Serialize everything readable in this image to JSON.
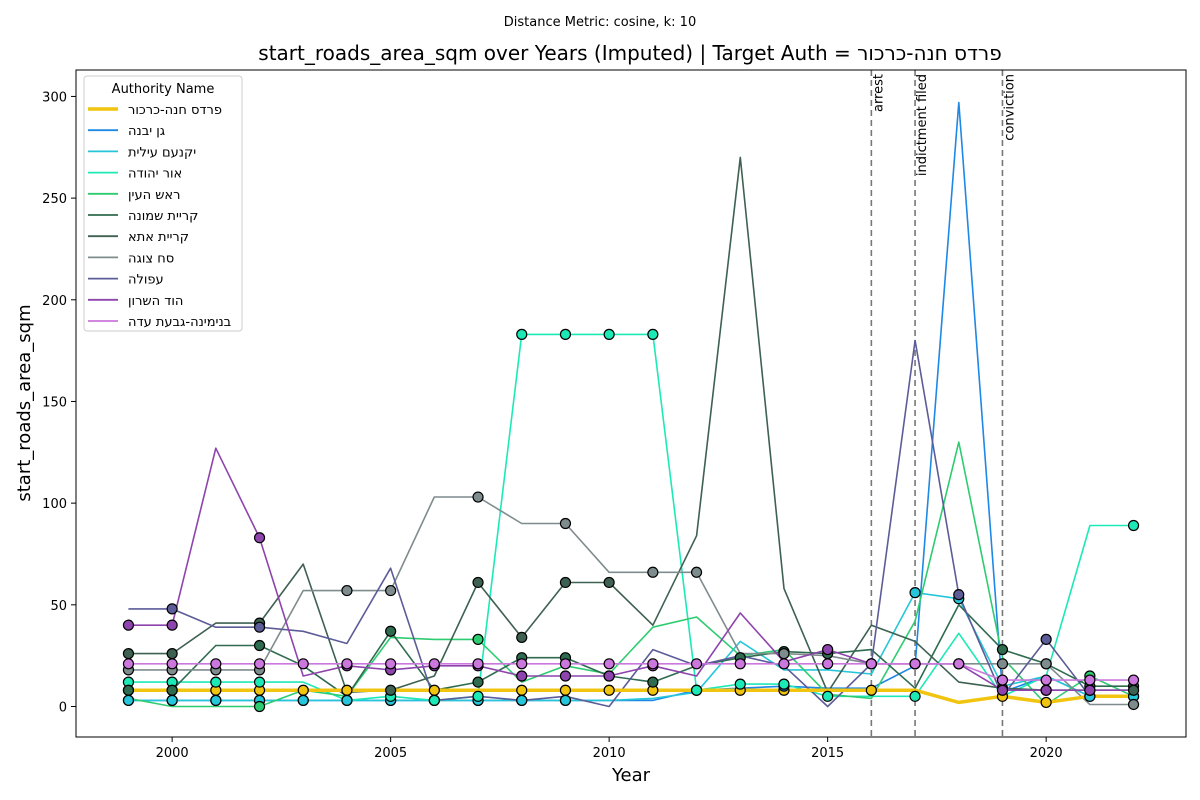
{
  "chart_data": {
    "type": "line",
    "suptitle": "Distance Metric: cosine, k: 10",
    "title": "start_roads_area_sqm over Years (Imputed) | Target Auth = פרדס חנה-כרכור",
    "xlabel": "Year",
    "ylabel": "start_roads_area_sqm",
    "xlim": [
      1997.8,
      2023.2
    ],
    "ylim": [
      -15,
      313
    ],
    "xticks": [
      2000,
      2005,
      2010,
      2015,
      2020
    ],
    "yticks": [
      0,
      50,
      100,
      150,
      200,
      250,
      300
    ],
    "grid": false,
    "legend": {
      "title": "Authority Name",
      "placement": "upper-left"
    },
    "x": [
      1999,
      2000,
      2001,
      2002,
      2003,
      2004,
      2005,
      2006,
      2007,
      2008,
      2009,
      2010,
      2011,
      2012,
      2013,
      2014,
      2015,
      2016,
      2017,
      2018,
      2019,
      2020,
      2021,
      2022
    ],
    "events": [
      {
        "x": 2016,
        "label": "arrest"
      },
      {
        "x": 2017,
        "label": "indictment filed"
      },
      {
        "x": 2019,
        "label": "conviction"
      }
    ],
    "series": [
      {
        "name": "פרדס חנה-כרכור",
        "color": "#f1c40f",
        "target": true,
        "values": [
          8,
          8,
          8,
          8,
          8,
          8,
          8,
          8,
          8,
          8,
          8,
          8,
          8,
          8,
          8,
          8,
          8,
          8,
          8,
          2,
          5,
          2,
          5,
          5
        ],
        "imputed": [
          0,
          1,
          2,
          3,
          4,
          5,
          7,
          9,
          10,
          11,
          12,
          13,
          14,
          15,
          17,
          20,
          21
        ]
      },
      {
        "name": "גן יבנה",
        "color": "#1e88e5",
        "values": [
          3,
          3,
          3,
          3,
          3,
          3,
          3,
          3,
          3,
          3,
          3,
          3,
          3,
          8,
          9,
          10,
          9,
          9,
          20,
          297,
          7,
          15,
          5,
          5
        ],
        "imputed": [
          0,
          1,
          2,
          3,
          4,
          5,
          6,
          7,
          8,
          9,
          10,
          15,
          22,
          23
        ]
      },
      {
        "name": "יקנעם עילית",
        "color": "#26c6da",
        "values": [
          3,
          3,
          3,
          3,
          3,
          3,
          3,
          3,
          3,
          3,
          3,
          3,
          4,
          7,
          32,
          18,
          18,
          16,
          56,
          53,
          10,
          15,
          5,
          5
        ],
        "imputed": [
          0,
          1,
          2,
          3,
          4,
          5,
          6,
          7,
          8,
          9,
          10,
          18,
          19,
          22,
          23
        ]
      },
      {
        "name": "אור יהודה",
        "color": "#1de9b6",
        "values": [
          12,
          12,
          12,
          12,
          12,
          3,
          5,
          3,
          5,
          183,
          183,
          183,
          183,
          8,
          11,
          11,
          5,
          5,
          5,
          36,
          5,
          15,
          89,
          89
        ],
        "imputed": [
          0,
          1,
          2,
          3,
          6,
          7,
          8,
          9,
          10,
          11,
          12,
          13,
          14,
          15,
          16,
          18,
          23
        ]
      },
      {
        "name": "ראש העין",
        "color": "#2ecc71",
        "values": [
          4,
          0,
          0,
          0,
          8,
          5,
          34,
          33,
          33,
          12,
          20,
          16,
          39,
          44,
          25,
          28,
          6,
          4,
          42,
          130,
          24,
          1,
          15,
          5
        ],
        "imputed": [
          3,
          8,
          22
        ]
      },
      {
        "name": "קריית שמונה",
        "color": "#2f6b4f",
        "values": [
          8,
          8,
          30,
          30,
          20,
          5,
          37,
          8,
          12,
          24,
          24,
          15,
          12,
          20,
          24,
          27,
          26,
          28,
          9,
          50,
          28,
          21,
          10,
          10
        ],
        "imputed": [
          0,
          1,
          3,
          6,
          8,
          9,
          10,
          11,
          12,
          14,
          15,
          16,
          20,
          21,
          22,
          23
        ]
      },
      {
        "name": "קריית אתא",
        "color": "#3e6152",
        "values": [
          26,
          26,
          41,
          41,
          70,
          7,
          8,
          15,
          61,
          34,
          61,
          61,
          40,
          84,
          270,
          58,
          7,
          40,
          32,
          12,
          9,
          8,
          8,
          8
        ],
        "imputed": [
          0,
          1,
          3,
          6,
          8,
          9,
          10,
          11,
          20,
          21,
          22,
          23
        ]
      },
      {
        "name": "סח צוגה",
        "color": "#7f8c8d",
        "values": [
          18,
          18,
          18,
          18,
          57,
          57,
          57,
          103,
          103,
          90,
          90,
          66,
          66,
          66,
          26,
          26,
          25,
          21,
          21,
          21,
          21,
          21,
          1,
          1
        ],
        "imputed": [
          0,
          1,
          2,
          3,
          5,
          6,
          8,
          10,
          12,
          13,
          15,
          17,
          18,
          20,
          21,
          23
        ]
      },
      {
        "name": "עפולה",
        "color": "#5c5c99",
        "values": [
          48,
          48,
          39,
          39,
          37,
          31,
          68,
          3,
          5,
          3,
          5,
          0,
          28,
          20,
          25,
          20,
          0,
          21,
          180,
          55,
          5,
          33,
          5,
          5
        ],
        "imputed": [
          1,
          3,
          19,
          21
        ]
      },
      {
        "name": "הוד השרון",
        "color": "#8e44ad",
        "values": [
          40,
          40,
          127,
          83,
          15,
          20,
          18,
          20,
          20,
          15,
          15,
          15,
          20,
          15,
          46,
          22,
          28,
          21,
          21,
          21,
          8,
          8,
          8,
          8
        ],
        "imputed": [
          0,
          1,
          3,
          5,
          6,
          7,
          8,
          9,
          10,
          11,
          12,
          16,
          17,
          18,
          19,
          20,
          21,
          22
        ]
      },
      {
        "name": "בנימינה-גבעת עדה",
        "color": "#cc77dd",
        "values": [
          21,
          21,
          21,
          21,
          21,
          21,
          21,
          21,
          21,
          21,
          21,
          21,
          21,
          21,
          21,
          21,
          21,
          21,
          21,
          21,
          13,
          13,
          13,
          13
        ],
        "imputed": [
          0,
          1,
          2,
          3,
          4,
          5,
          6,
          7,
          8,
          9,
          10,
          11,
          12,
          13,
          14,
          15,
          16,
          17,
          18,
          19,
          20,
          21,
          22,
          23
        ]
      }
    ]
  }
}
